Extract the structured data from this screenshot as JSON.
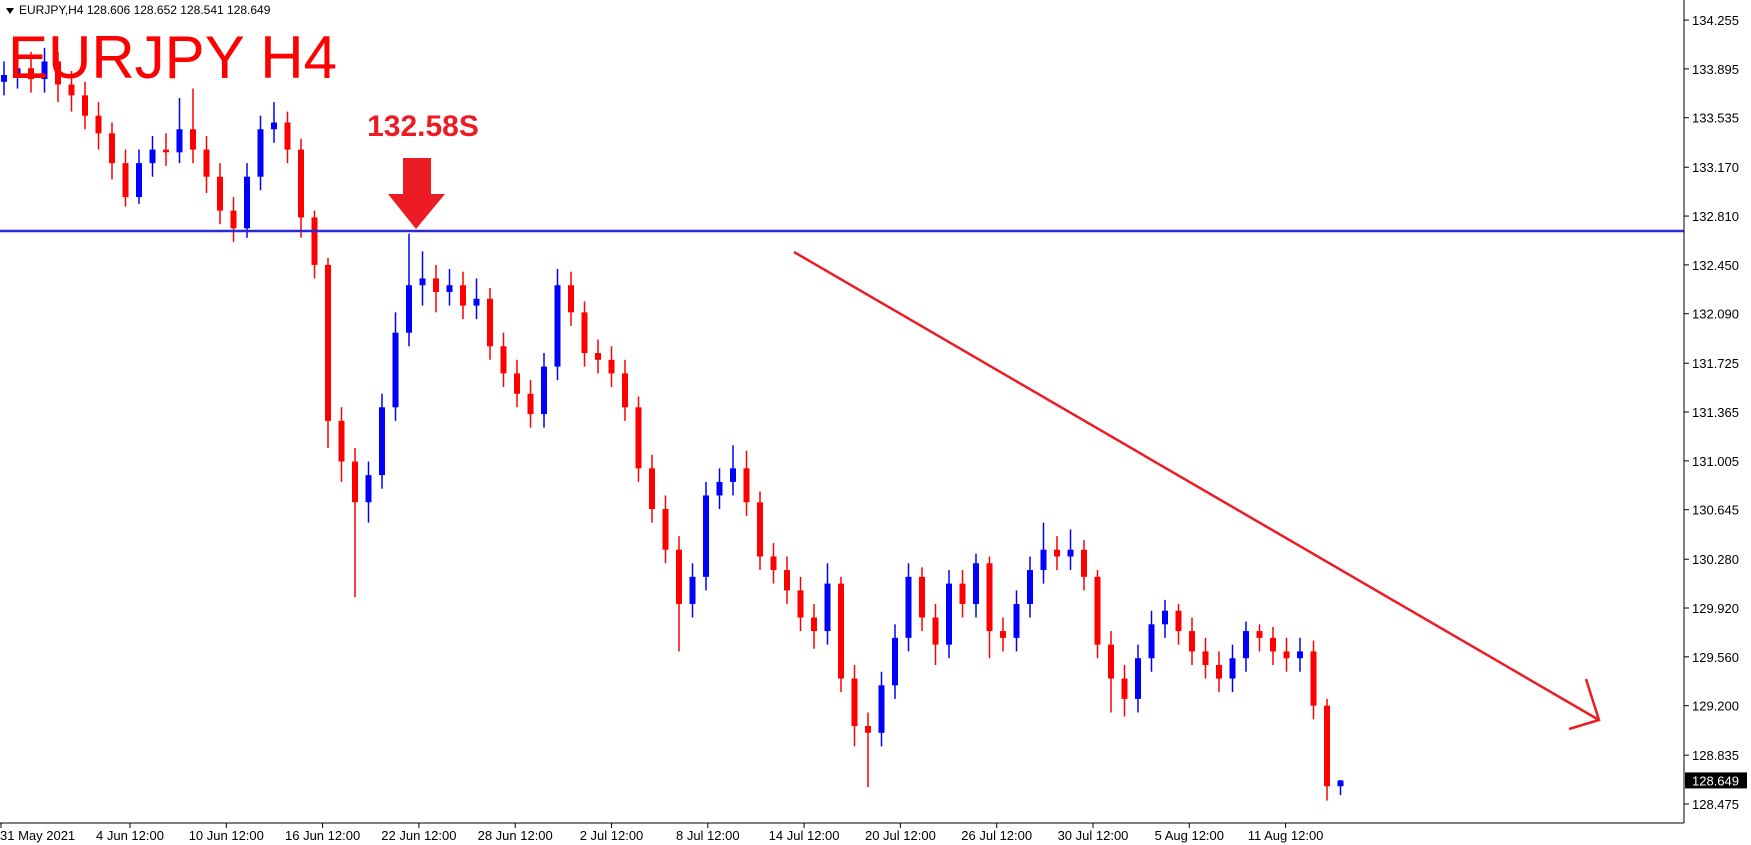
{
  "chart_data": {
    "type": "candlestick",
    "title": "EURJPY H4",
    "symbol": "EURJPY,H4",
    "annotation": "132.58S",
    "level": 132.7,
    "level_color": "#2b2bd6",
    "up_color": "#0000ff",
    "down_color": "#ff0000",
    "open": [
      133.8,
      133.85,
      133.9,
      133.82,
      133.95,
      133.78,
      133.7,
      133.55,
      133.42,
      133.2,
      132.95,
      133.2,
      133.3,
      133.28,
      133.45,
      133.3,
      133.1,
      132.85,
      132.72,
      133.1,
      133.45,
      133.5,
      133.3,
      132.8,
      132.45,
      131.3,
      131.0,
      130.7,
      130.9,
      131.4,
      131.95,
      132.3,
      132.35,
      132.25,
      132.3,
      132.15,
      132.2,
      131.85,
      131.65,
      131.5,
      131.35,
      131.7,
      132.3,
      132.1,
      131.8,
      131.75,
      131.65,
      131.4,
      130.95,
      130.65,
      130.35,
      129.95,
      130.15,
      130.75,
      130.85,
      130.95,
      130.7,
      130.3,
      130.2,
      130.05,
      129.85,
      129.75,
      130.1,
      129.4,
      129.05,
      129.0,
      129.35,
      129.7,
      130.15,
      129.85,
      129.65,
      130.1,
      129.95,
      130.25,
      129.75,
      129.7,
      129.95,
      130.2,
      130.35,
      130.3,
      130.35,
      130.15,
      129.65,
      129.4,
      129.25,
      129.55,
      129.8,
      129.9,
      129.75,
      129.6,
      129.5,
      129.4,
      129.55,
      129.75,
      129.7,
      129.6,
      129.55,
      129.6,
      129.2,
      128.606
    ],
    "high": [
      133.95,
      134.0,
      134.02,
      134.05,
      134.02,
      133.88,
      133.8,
      133.65,
      133.5,
      133.3,
      133.3,
      133.4,
      133.42,
      133.68,
      133.75,
      133.4,
      133.2,
      132.95,
      133.2,
      133.55,
      133.65,
      133.58,
      133.38,
      132.85,
      132.5,
      131.4,
      131.1,
      131.0,
      131.5,
      132.1,
      132.68,
      132.55,
      132.45,
      132.42,
      132.4,
      132.35,
      132.28,
      131.95,
      131.75,
      131.6,
      131.8,
      132.42,
      132.4,
      132.18,
      131.9,
      131.85,
      131.75,
      131.48,
      131.05,
      130.75,
      130.45,
      130.25,
      130.85,
      130.95,
      131.12,
      131.08,
      130.78,
      130.4,
      130.3,
      130.15,
      129.95,
      130.25,
      130.15,
      129.5,
      129.15,
      129.45,
      129.8,
      130.25,
      130.22,
      129.95,
      130.2,
      130.2,
      130.32,
      130.3,
      129.85,
      130.05,
      130.3,
      130.55,
      130.45,
      130.5,
      130.42,
      130.2,
      129.75,
      129.5,
      129.65,
      129.9,
      129.98,
      129.95,
      129.85,
      129.7,
      129.6,
      129.65,
      129.82,
      129.8,
      129.78,
      129.7,
      129.7,
      129.68,
      129.25,
      128.652
    ],
    "low": [
      133.7,
      133.75,
      133.72,
      133.72,
      133.65,
      133.58,
      133.45,
      133.3,
      133.08,
      132.88,
      132.9,
      133.1,
      133.18,
      133.2,
      133.2,
      132.98,
      132.75,
      132.62,
      132.65,
      133.0,
      133.35,
      133.2,
      132.65,
      132.35,
      131.1,
      130.85,
      130.0,
      130.55,
      130.8,
      131.3,
      131.85,
      132.15,
      132.1,
      132.15,
      132.05,
      132.05,
      131.75,
      131.55,
      131.4,
      131.25,
      131.25,
      131.6,
      132.0,
      131.7,
      131.65,
      131.55,
      131.3,
      130.85,
      130.55,
      130.25,
      129.6,
      129.85,
      130.05,
      130.65,
      130.75,
      130.6,
      130.2,
      130.1,
      129.95,
      129.75,
      129.62,
      129.65,
      129.3,
      128.9,
      128.6,
      128.9,
      129.25,
      129.6,
      129.75,
      129.5,
      129.55,
      129.85,
      129.85,
      129.55,
      129.6,
      129.6,
      129.85,
      130.1,
      130.2,
      130.2,
      130.05,
      129.55,
      129.15,
      129.12,
      129.15,
      129.45,
      129.7,
      129.65,
      129.5,
      129.4,
      129.3,
      129.3,
      129.45,
      129.6,
      129.5,
      129.45,
      129.45,
      129.1,
      128.5,
      128.541
    ],
    "close": [
      133.85,
      133.9,
      133.82,
      133.95,
      133.78,
      133.7,
      133.55,
      133.42,
      133.2,
      132.95,
      133.2,
      133.3,
      133.28,
      133.45,
      133.3,
      133.1,
      132.85,
      132.72,
      133.1,
      133.45,
      133.5,
      133.3,
      132.8,
      132.45,
      131.3,
      131.0,
      130.7,
      130.9,
      131.4,
      131.95,
      132.3,
      132.35,
      132.25,
      132.3,
      132.15,
      132.2,
      131.85,
      131.65,
      131.5,
      131.35,
      131.7,
      132.3,
      132.1,
      131.8,
      131.75,
      131.65,
      131.4,
      130.95,
      130.65,
      130.35,
      129.95,
      130.15,
      130.75,
      130.85,
      130.95,
      130.7,
      130.3,
      130.2,
      130.05,
      129.85,
      129.75,
      130.1,
      129.4,
      129.05,
      129.0,
      129.35,
      129.7,
      130.15,
      129.85,
      129.65,
      130.1,
      129.95,
      130.25,
      129.75,
      129.7,
      129.95,
      130.2,
      130.35,
      130.3,
      130.35,
      130.15,
      129.65,
      129.4,
      129.25,
      129.55,
      129.8,
      129.9,
      129.75,
      129.6,
      129.5,
      129.4,
      129.55,
      129.75,
      129.7,
      129.6,
      129.55,
      129.6,
      129.2,
      128.606,
      128.649
    ],
    "ylim": [
      128.335,
      134.403
    ],
    "yticks": [
      134.255,
      133.895,
      133.535,
      {
        "value": 133.17,
        "label": "133.170"
      },
      {
        "value": 132.81,
        "label": "132.810"
      },
      {
        "value": 132.45,
        "label": "132.450"
      },
      {
        "value": 132.09,
        "label": "132.090"
      },
      131.725,
      131.365,
      131.005,
      130.645,
      {
        "value": 130.28,
        "label": "130.280"
      },
      {
        "value": 129.92,
        "label": "129.920"
      },
      {
        "value": 129.56,
        "label": "129.560"
      },
      {
        "value": 129.2,
        "label": "129.200"
      },
      128.835,
      128.475
    ],
    "x_labels": [
      "31 May 2021",
      "4 Jun 12:00",
      "10 Jun 12:00",
      "16 Jun 12:00",
      "22 Jun 12:00",
      "28 Jun 12:00",
      "2 Jul 12:00",
      "8 Jul 12:00",
      "14 Jul 12:00",
      "20 Jul 12:00",
      "26 Jul 12:00",
      "30 Jul 12:00",
      "5 Aug 12:00",
      "11 Aug 12:00"
    ]
  }
}
